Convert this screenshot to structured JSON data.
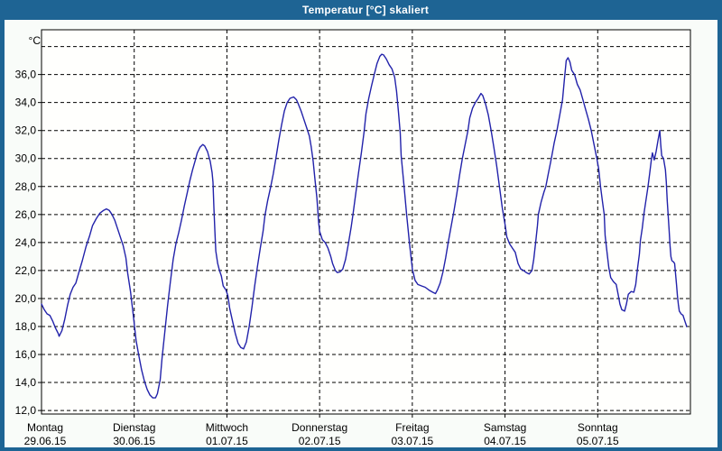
{
  "window": {
    "title": "Temperatur [°C] skaliert"
  },
  "colors": {
    "titlebar": "#1e6494",
    "window_border": "#1e6494",
    "window_background": "#f9fcf9",
    "plot_background": "#fffffd",
    "grid": "#000000",
    "line": "#2222aa",
    "text": "#000000",
    "title_text": "#ffffff"
  },
  "chart_data": {
    "type": "line",
    "title": "Temperatur [°C] skaliert",
    "ylabel": "°C",
    "xlabel": "",
    "legend": "none",
    "grid": "dashed",
    "ylim": [
      12,
      38
    ],
    "y_grid_values": [
      12,
      14,
      16,
      18,
      20,
      22,
      24,
      26,
      28,
      30,
      32,
      34,
      36,
      38
    ],
    "y_tick_values": [
      12,
      14,
      16,
      18,
      20,
      22,
      24,
      26,
      28,
      30,
      32,
      34,
      36
    ],
    "y_tick_labels": [
      "12,0",
      "14,0",
      "16,0",
      "18,0",
      "20,0",
      "22,0",
      "24,0",
      "26,0",
      "28,0",
      "30,0",
      "32,0",
      "34,0",
      "36,0"
    ],
    "x_days": [
      {
        "day": "Montag",
        "date": "29.06.15"
      },
      {
        "day": "Dienstag",
        "date": "30.06.15"
      },
      {
        "day": "Mittwoch",
        "date": "01.07.15"
      },
      {
        "day": "Donnerstag",
        "date": "02.07.15"
      },
      {
        "day": "Freitag",
        "date": "03.07.15"
      },
      {
        "day": "Samstag",
        "date": "04.07.15"
      },
      {
        "day": "Sonntag",
        "date": "05.07.15"
      }
    ],
    "x_unit": "days_since_2015-06-29",
    "series": [
      {
        "name": "Temperatur [°C]",
        "color": "#2222aa",
        "points": [
          [
            0.0,
            19.6
          ],
          [
            0.03,
            19.2
          ],
          [
            0.06,
            18.9
          ],
          [
            0.09,
            18.8
          ],
          [
            0.12,
            18.4
          ],
          [
            0.15,
            17.9
          ],
          [
            0.18,
            17.5
          ],
          [
            0.19,
            17.3
          ],
          [
            0.22,
            17.7
          ],
          [
            0.25,
            18.5
          ],
          [
            0.28,
            19.5
          ],
          [
            0.31,
            20.3
          ],
          [
            0.34,
            20.8
          ],
          [
            0.37,
            21.1
          ],
          [
            0.4,
            21.8
          ],
          [
            0.44,
            22.7
          ],
          [
            0.48,
            23.7
          ],
          [
            0.52,
            24.5
          ],
          [
            0.55,
            25.2
          ],
          [
            0.59,
            25.7
          ],
          [
            0.63,
            26.1
          ],
          [
            0.67,
            26.3
          ],
          [
            0.7,
            26.4
          ],
          [
            0.73,
            26.3
          ],
          [
            0.76,
            26.0
          ],
          [
            0.79,
            25.6
          ],
          [
            0.82,
            25.0
          ],
          [
            0.85,
            24.4
          ],
          [
            0.88,
            23.8
          ],
          [
            0.91,
            22.9
          ],
          [
            0.93,
            21.8
          ],
          [
            0.96,
            20.5
          ],
          [
            0.99,
            18.8
          ],
          [
            1.02,
            17.0
          ],
          [
            1.05,
            15.9
          ],
          [
            1.08,
            14.9
          ],
          [
            1.11,
            14.1
          ],
          [
            1.14,
            13.5
          ],
          [
            1.17,
            13.1
          ],
          [
            1.2,
            12.9
          ],
          [
            1.23,
            12.9
          ],
          [
            1.25,
            13.2
          ],
          [
            1.28,
            14.2
          ],
          [
            1.3,
            15.7
          ],
          [
            1.33,
            17.6
          ],
          [
            1.36,
            19.5
          ],
          [
            1.39,
            21.2
          ],
          [
            1.42,
            22.8
          ],
          [
            1.45,
            23.9
          ],
          [
            1.48,
            24.7
          ],
          [
            1.51,
            25.6
          ],
          [
            1.54,
            26.6
          ],
          [
            1.57,
            27.5
          ],
          [
            1.6,
            28.4
          ],
          [
            1.63,
            29.2
          ],
          [
            1.66,
            29.9
          ],
          [
            1.68,
            30.4
          ],
          [
            1.71,
            30.8
          ],
          [
            1.74,
            31.0
          ],
          [
            1.76,
            30.9
          ],
          [
            1.79,
            30.5
          ],
          [
            1.82,
            29.8
          ],
          [
            1.84,
            29.0
          ],
          [
            1.85,
            28.3
          ],
          [
            1.86,
            26.5
          ],
          [
            1.87,
            24.8
          ],
          [
            1.88,
            23.4
          ],
          [
            1.9,
            22.5
          ],
          [
            1.92,
            22.0
          ],
          [
            1.94,
            21.6
          ],
          [
            1.96,
            20.9
          ],
          [
            1.99,
            20.6
          ],
          [
            2.01,
            20.2
          ],
          [
            2.03,
            19.3
          ],
          [
            2.06,
            18.4
          ],
          [
            2.09,
            17.5
          ],
          [
            2.12,
            16.8
          ],
          [
            2.15,
            16.5
          ],
          [
            2.18,
            16.4
          ],
          [
            2.21,
            16.9
          ],
          [
            2.24,
            18.0
          ],
          [
            2.27,
            19.4
          ],
          [
            2.3,
            20.9
          ],
          [
            2.33,
            22.3
          ],
          [
            2.36,
            23.6
          ],
          [
            2.39,
            24.8
          ],
          [
            2.41,
            25.9
          ],
          [
            2.44,
            27.0
          ],
          [
            2.47,
            27.9
          ],
          [
            2.5,
            28.9
          ],
          [
            2.53,
            30.1
          ],
          [
            2.56,
            31.3
          ],
          [
            2.59,
            32.4
          ],
          [
            2.62,
            33.4
          ],
          [
            2.65,
            34.0
          ],
          [
            2.68,
            34.3
          ],
          [
            2.72,
            34.4
          ],
          [
            2.75,
            34.2
          ],
          [
            2.77,
            33.9
          ],
          [
            2.8,
            33.4
          ],
          [
            2.83,
            32.8
          ],
          [
            2.86,
            32.2
          ],
          [
            2.89,
            31.6
          ],
          [
            2.91,
            30.8
          ],
          [
            2.93,
            29.8
          ],
          [
            2.95,
            28.5
          ],
          [
            2.97,
            27.2
          ],
          [
            2.99,
            25.4
          ],
          [
            3.0,
            24.8
          ],
          [
            3.03,
            24.2
          ],
          [
            3.06,
            24.0
          ],
          [
            3.09,
            23.6
          ],
          [
            3.12,
            23.0
          ],
          [
            3.14,
            22.5
          ],
          [
            3.17,
            22.0
          ],
          [
            3.19,
            21.85
          ],
          [
            3.22,
            21.9
          ],
          [
            3.25,
            22.1
          ],
          [
            3.28,
            22.8
          ],
          [
            3.31,
            23.9
          ],
          [
            3.34,
            25.1
          ],
          [
            3.36,
            26.0
          ],
          [
            3.39,
            27.5
          ],
          [
            3.42,
            29.0
          ],
          [
            3.45,
            30.4
          ],
          [
            3.48,
            31.9
          ],
          [
            3.5,
            33.2
          ],
          [
            3.53,
            34.3
          ],
          [
            3.56,
            35.2
          ],
          [
            3.59,
            36.0
          ],
          [
            3.62,
            36.8
          ],
          [
            3.65,
            37.3
          ],
          [
            3.67,
            37.45
          ],
          [
            3.69,
            37.4
          ],
          [
            3.72,
            37.1
          ],
          [
            3.75,
            36.7
          ],
          [
            3.78,
            36.4
          ],
          [
            3.81,
            35.8
          ],
          [
            3.83,
            34.8
          ],
          [
            3.85,
            33.4
          ],
          [
            3.87,
            31.8
          ],
          [
            3.88,
            30.2
          ],
          [
            3.91,
            28.1
          ],
          [
            3.94,
            25.9
          ],
          [
            3.97,
            23.9
          ],
          [
            4.0,
            22.1
          ],
          [
            4.03,
            21.3
          ],
          [
            4.06,
            21.0
          ],
          [
            4.1,
            20.9
          ],
          [
            4.14,
            20.8
          ],
          [
            4.18,
            20.6
          ],
          [
            4.22,
            20.45
          ],
          [
            4.25,
            20.35
          ],
          [
            4.27,
            20.6
          ],
          [
            4.3,
            21.1
          ],
          [
            4.33,
            21.9
          ],
          [
            4.36,
            22.9
          ],
          [
            4.39,
            24.1
          ],
          [
            4.42,
            25.2
          ],
          [
            4.45,
            26.3
          ],
          [
            4.48,
            27.5
          ],
          [
            4.51,
            28.8
          ],
          [
            4.54,
            30.0
          ],
          [
            4.57,
            31.0
          ],
          [
            4.6,
            32.0
          ],
          [
            4.62,
            32.9
          ],
          [
            4.65,
            33.6
          ],
          [
            4.68,
            34.0
          ],
          [
            4.71,
            34.3
          ],
          [
            4.74,
            34.65
          ],
          [
            4.76,
            34.5
          ],
          [
            4.79,
            33.9
          ],
          [
            4.82,
            33.1
          ],
          [
            4.85,
            32.0
          ],
          [
            4.88,
            30.8
          ],
          [
            4.91,
            29.5
          ],
          [
            4.94,
            28.0
          ],
          [
            4.97,
            26.5
          ],
          [
            5.0,
            25.3
          ],
          [
            5.02,
            24.4
          ],
          [
            5.05,
            23.9
          ],
          [
            5.08,
            23.6
          ],
          [
            5.11,
            23.3
          ],
          [
            5.14,
            22.5
          ],
          [
            5.17,
            22.1
          ],
          [
            5.2,
            22.0
          ],
          [
            5.23,
            21.85
          ],
          [
            5.26,
            21.75
          ],
          [
            5.29,
            22.0
          ],
          [
            5.31,
            22.8
          ],
          [
            5.33,
            24.0
          ],
          [
            5.35,
            25.2
          ],
          [
            5.36,
            26.0
          ],
          [
            5.39,
            26.9
          ],
          [
            5.42,
            27.6
          ],
          [
            5.44,
            28.0
          ],
          [
            5.47,
            29.0
          ],
          [
            5.5,
            30.0
          ],
          [
            5.53,
            31.1
          ],
          [
            5.56,
            32.0
          ],
          [
            5.59,
            33.1
          ],
          [
            5.62,
            34.2
          ],
          [
            5.64,
            35.6
          ],
          [
            5.66,
            37.0
          ],
          [
            5.68,
            37.2
          ],
          [
            5.7,
            36.9
          ],
          [
            5.72,
            36.3
          ],
          [
            5.75,
            36.0
          ],
          [
            5.78,
            35.3
          ],
          [
            5.81,
            34.9
          ],
          [
            5.84,
            34.2
          ],
          [
            5.87,
            33.5
          ],
          [
            5.9,
            32.8
          ],
          [
            5.93,
            32.0
          ],
          [
            5.96,
            31.0
          ],
          [
            5.99,
            30.0
          ],
          [
            6.01,
            29.3
          ],
          [
            6.03,
            28.0
          ],
          [
            6.05,
            27.0
          ],
          [
            6.07,
            26.0
          ],
          [
            6.08,
            24.5
          ],
          [
            6.1,
            23.3
          ],
          [
            6.12,
            22.2
          ],
          [
            6.14,
            21.5
          ],
          [
            6.17,
            21.2
          ],
          [
            6.2,
            21.0
          ],
          [
            6.22,
            20.3
          ],
          [
            6.24,
            19.6
          ],
          [
            6.26,
            19.2
          ],
          [
            6.29,
            19.1
          ],
          [
            6.31,
            19.6
          ],
          [
            6.33,
            20.3
          ],
          [
            6.36,
            20.5
          ],
          [
            6.39,
            20.45
          ],
          [
            6.41,
            21.0
          ],
          [
            6.43,
            22.2
          ],
          [
            6.45,
            23.2
          ],
          [
            6.46,
            24.1
          ],
          [
            6.48,
            25.0
          ],
          [
            6.5,
            26.1
          ],
          [
            6.52,
            27.0
          ],
          [
            6.54,
            27.9
          ],
          [
            6.56,
            28.9
          ],
          [
            6.58,
            30.0
          ],
          [
            6.59,
            30.4
          ],
          [
            6.61,
            29.9
          ],
          [
            6.63,
            30.5
          ],
          [
            6.65,
            31.3
          ],
          [
            6.67,
            32.0
          ],
          [
            6.68,
            31.0
          ],
          [
            6.69,
            30.2
          ],
          [
            6.71,
            30.0
          ],
          [
            6.73,
            29.2
          ],
          [
            6.74,
            28.3
          ],
          [
            6.75,
            27.0
          ],
          [
            6.76,
            26.0
          ],
          [
            6.77,
            24.9
          ],
          [
            6.78,
            23.8
          ],
          [
            6.79,
            23.0
          ],
          [
            6.8,
            22.7
          ],
          [
            6.82,
            22.6
          ],
          [
            6.83,
            22.5
          ],
          [
            6.85,
            21.0
          ],
          [
            6.86,
            20.2
          ],
          [
            6.87,
            19.6
          ],
          [
            6.88,
            19.1
          ],
          [
            6.9,
            18.9
          ],
          [
            6.92,
            18.8
          ],
          [
            6.94,
            18.4
          ],
          [
            6.96,
            18.0
          ]
        ]
      }
    ]
  }
}
